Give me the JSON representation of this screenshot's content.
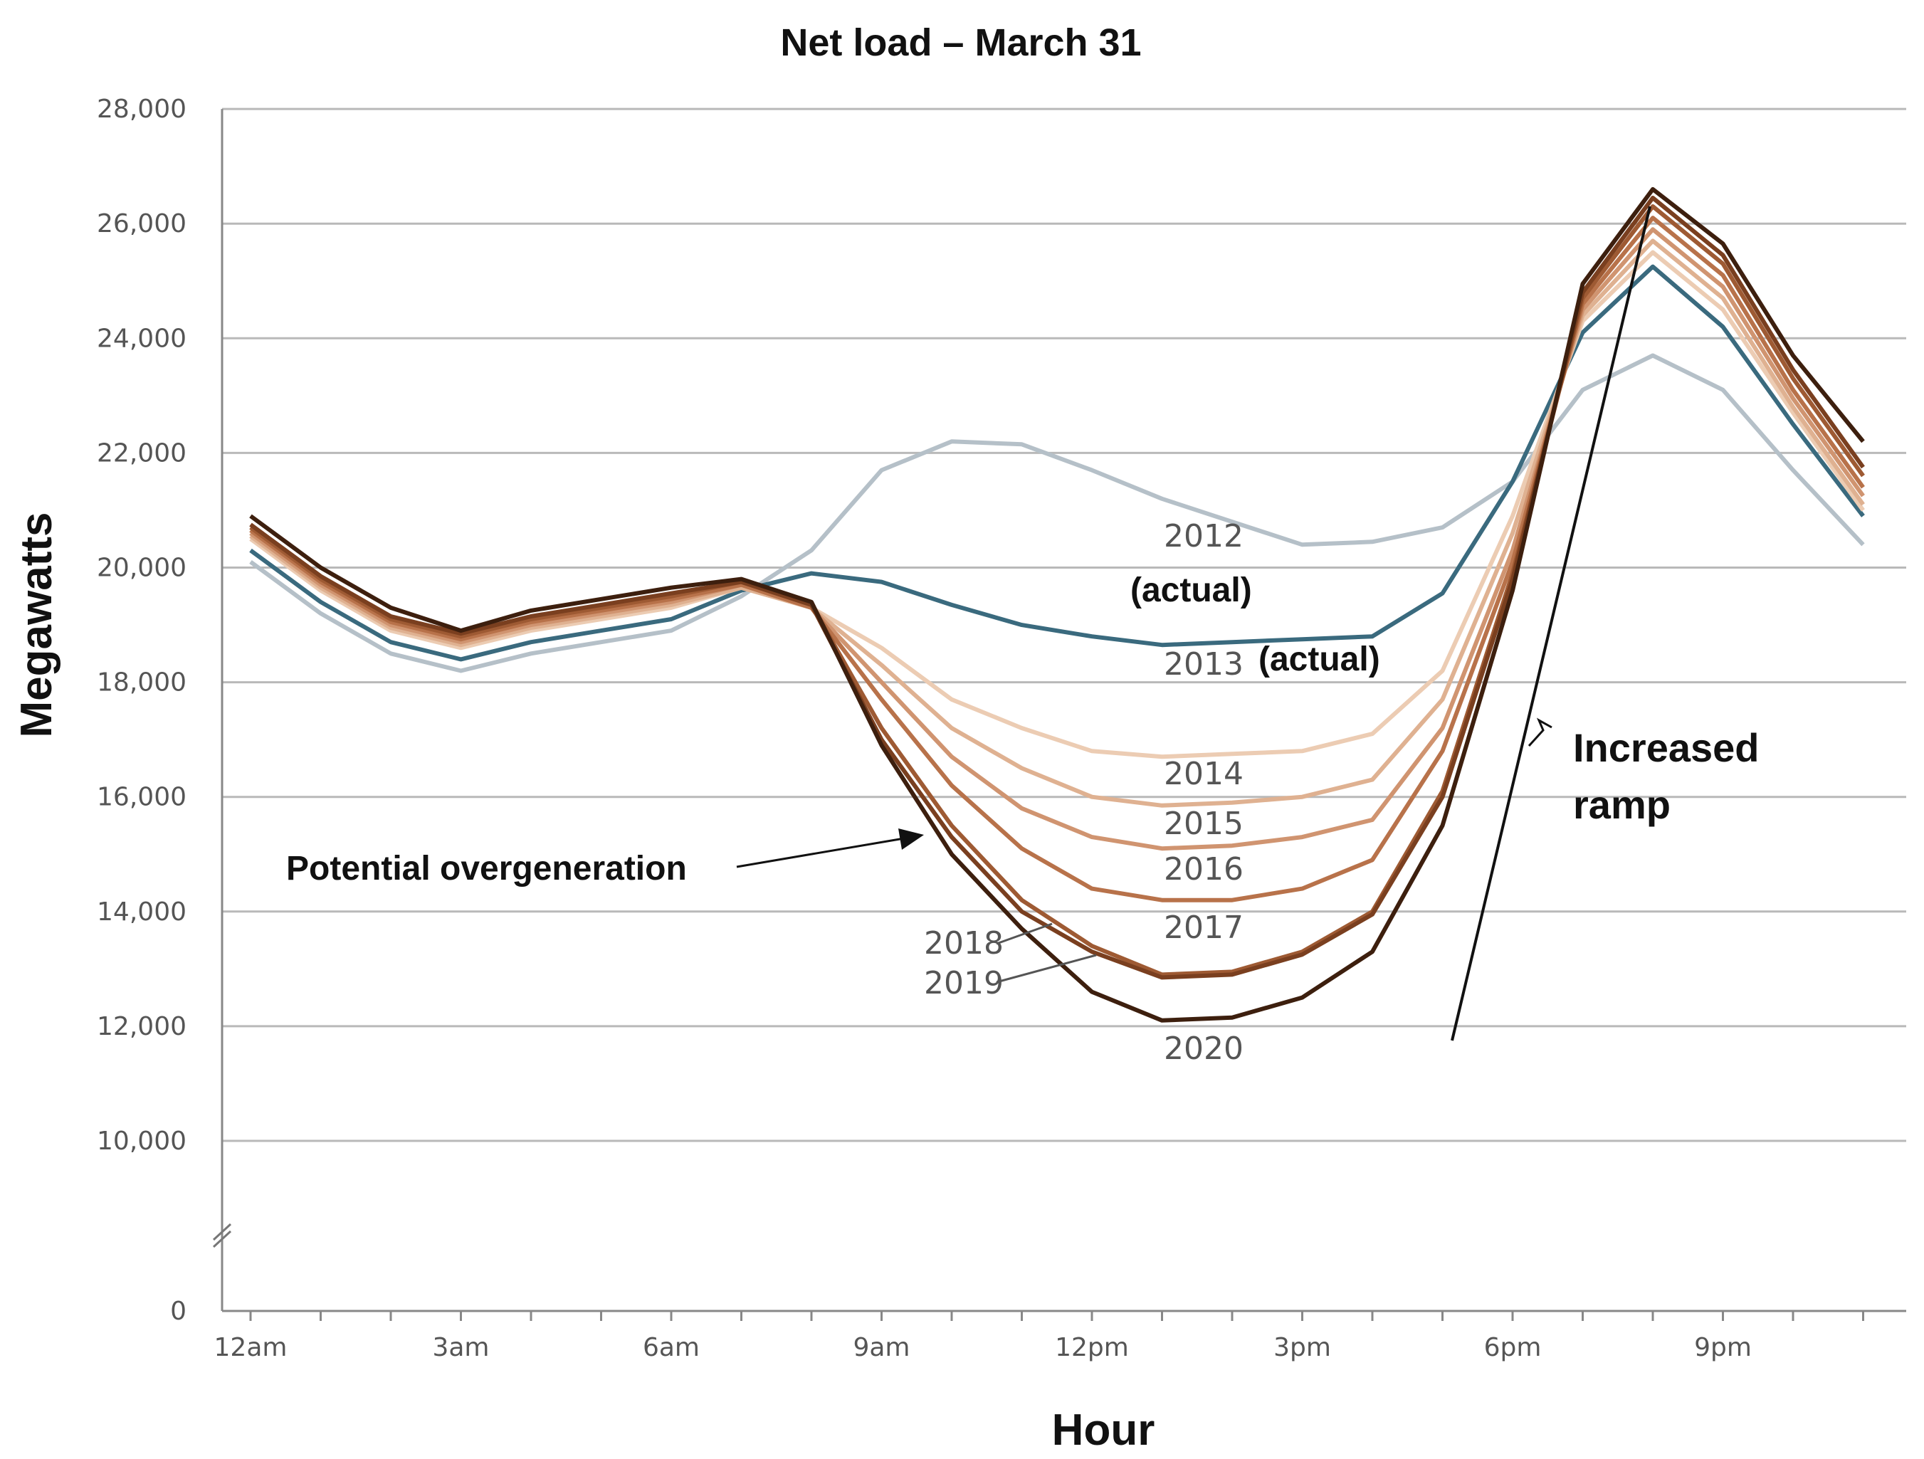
{
  "chart_data": {
    "type": "line",
    "title": "Net load – March 31",
    "xlabel": "Hour",
    "ylabel": "Megawatts",
    "ylim": [
      0,
      28000
    ],
    "y_ticks": [
      0,
      10000,
      12000,
      14000,
      16000,
      18000,
      20000,
      22000,
      24000,
      26000,
      28000
    ],
    "y_tick_labels": [
      "0",
      "10,000",
      "12,000",
      "14,000",
      "16,000",
      "18,000",
      "20,000",
      "22,000",
      "24,000",
      "26,000",
      "28,000"
    ],
    "x_tick_labels": [
      "12am",
      "3am",
      "6am",
      "9am",
      "12pm",
      "3pm",
      "6pm",
      "9pm"
    ],
    "x_tick_hours": [
      0,
      3,
      6,
      9,
      12,
      15,
      18,
      21
    ],
    "x": [
      0,
      1,
      2,
      3,
      4,
      5,
      6,
      7,
      8,
      9,
      10,
      11,
      12,
      13,
      14,
      15,
      16,
      17,
      18,
      19,
      20,
      21,
      22,
      23
    ],
    "grid": true,
    "series": [
      {
        "name": "2012",
        "label": "2012",
        "color": "#b5c0c8",
        "values": [
          20100,
          19200,
          18500,
          18200,
          18500,
          18700,
          18900,
          19500,
          20300,
          21700,
          22200,
          22150,
          21700,
          21200,
          20800,
          20400,
          20450,
          20700,
          21500,
          23100,
          23700,
          23100,
          21700,
          20400
        ]
      },
      {
        "name": "2013",
        "label": "2013",
        "color": "#3a6a7e",
        "values": [
          20300,
          19400,
          18700,
          18400,
          18700,
          18900,
          19100,
          19600,
          19900,
          19750,
          19350,
          19000,
          18800,
          18650,
          18700,
          18750,
          18800,
          19550,
          21500,
          24100,
          25250,
          24200,
          22500,
          20900
        ]
      },
      {
        "name": "2014",
        "label": "2014",
        "color": "#ecccb3",
        "values": [
          20500,
          19600,
          18900,
          18600,
          18900,
          19100,
          19300,
          19650,
          19300,
          18600,
          17700,
          17200,
          16800,
          16700,
          16750,
          16800,
          17100,
          18200,
          20900,
          24300,
          25500,
          24500,
          22700,
          21000
        ]
      },
      {
        "name": "2015",
        "label": "2015",
        "color": "#dfb191",
        "values": [
          20550,
          19650,
          18950,
          18650,
          18950,
          19150,
          19350,
          19650,
          19300,
          18300,
          17200,
          16500,
          16000,
          15850,
          15900,
          16000,
          16300,
          17700,
          20600,
          24400,
          25700,
          24700,
          22800,
          21100
        ]
      },
      {
        "name": "2016",
        "label": "2016",
        "color": "#d09470",
        "values": [
          20600,
          19700,
          19000,
          18700,
          19000,
          19200,
          19400,
          19700,
          19300,
          18000,
          16700,
          15800,
          15300,
          15100,
          15150,
          15300,
          15600,
          17200,
          20300,
          24500,
          25900,
          24900,
          22950,
          21250
        ]
      },
      {
        "name": "2017",
        "label": "2017",
        "color": "#b8724a",
        "values": [
          20650,
          19750,
          19050,
          18750,
          19050,
          19250,
          19450,
          19700,
          19300,
          17700,
          16200,
          15100,
          14400,
          14200,
          14200,
          14400,
          14900,
          16800,
          20100,
          24600,
          26100,
          25100,
          23100,
          21400
        ]
      },
      {
        "name": "2018",
        "label": "2018",
        "color": "#9e5a33",
        "values": [
          20700,
          19800,
          19100,
          18800,
          19100,
          19300,
          19500,
          19750,
          19350,
          17200,
          15500,
          14200,
          13400,
          12900,
          12950,
          13300,
          14000,
          16100,
          19900,
          24700,
          26300,
          25300,
          23300,
          21600
        ]
      },
      {
        "name": "2019",
        "label": "2019",
        "color": "#7a3f1f",
        "values": [
          20750,
          19850,
          19150,
          18850,
          19150,
          19350,
          19550,
          19750,
          19350,
          17000,
          15300,
          14000,
          13300,
          12850,
          12900,
          13250,
          13950,
          16000,
          19800,
          24800,
          26450,
          25450,
          23450,
          21750
        ]
      },
      {
        "name": "2020",
        "label": "2020",
        "color": "#3d1f0e",
        "values": [
          20900,
          20000,
          19300,
          18900,
          19250,
          19450,
          19650,
          19800,
          19400,
          16900,
          15000,
          13700,
          12600,
          12100,
          12150,
          12500,
          13300,
          15500,
          19600,
          24950,
          26600,
          25650,
          23700,
          22200
        ]
      }
    ],
    "annotations": {
      "actual_2012": "(actual)",
      "actual_2013": "(actual)",
      "overgeneration": "Potential overgeneration",
      "ramp_line1": "Increased",
      "ramp_line2": "ramp"
    }
  }
}
